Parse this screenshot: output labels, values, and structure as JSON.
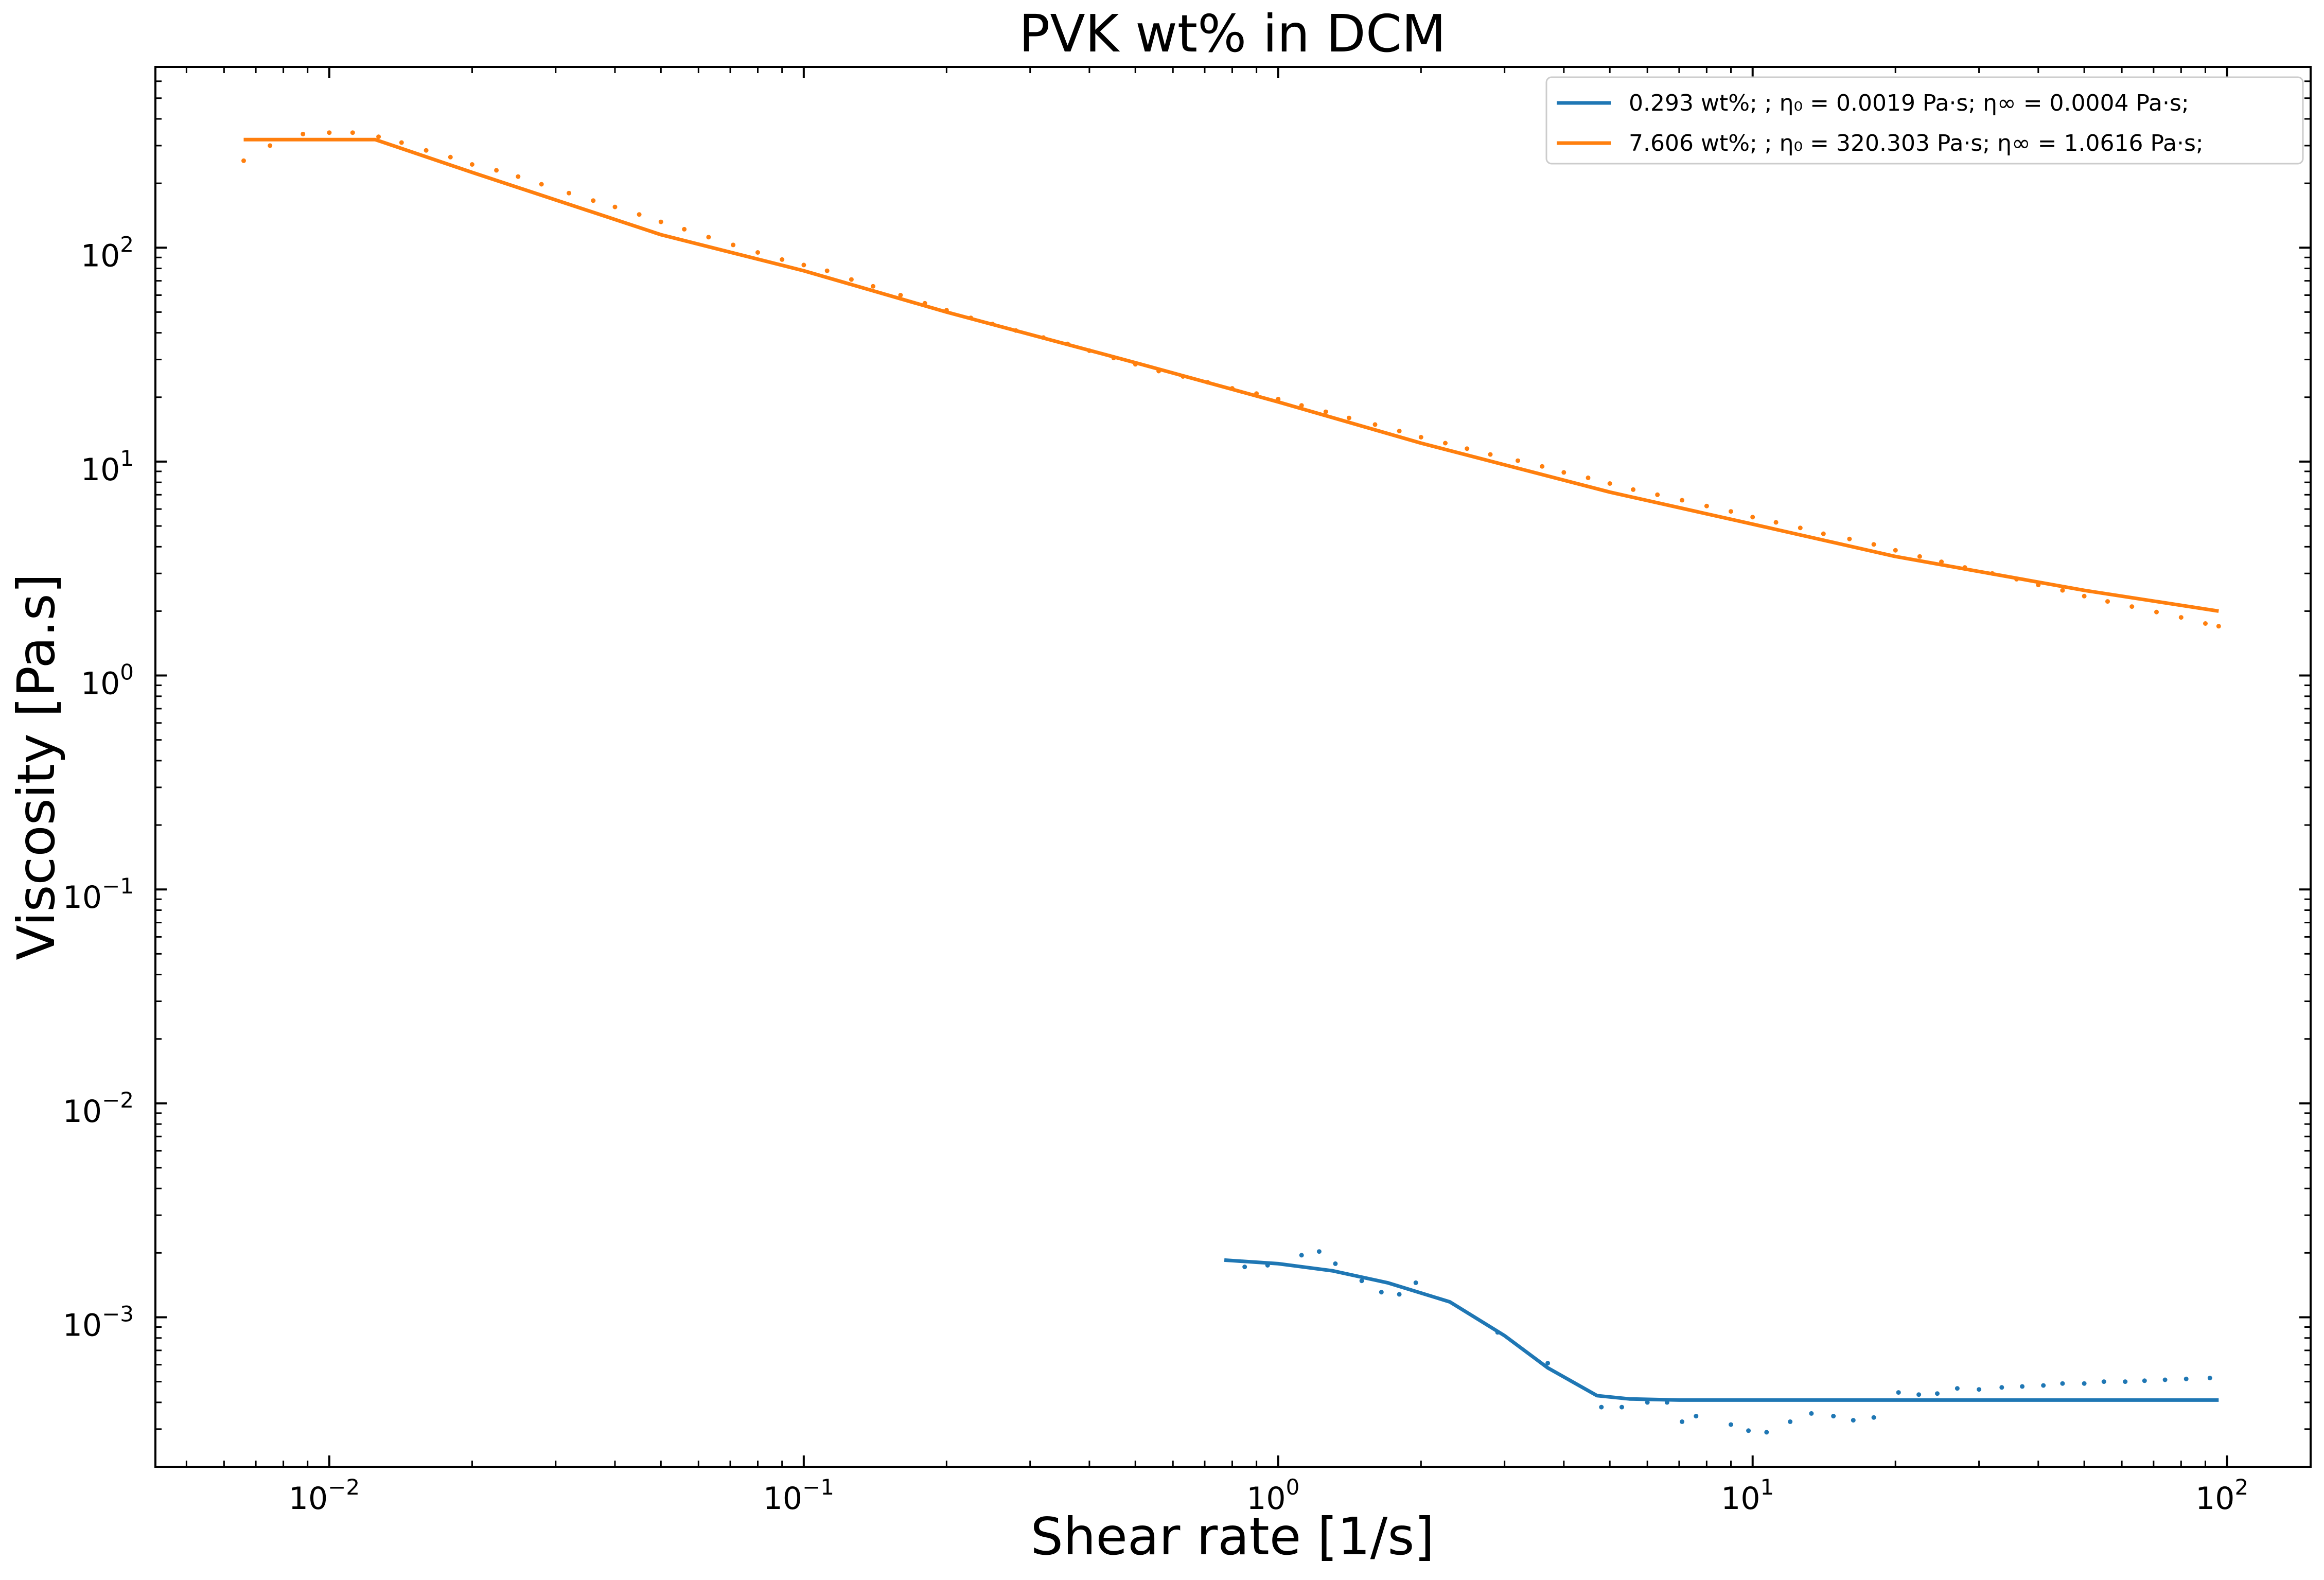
{
  "chart_data": {
    "type": "line",
    "title": "PVK wt% in DCM",
    "xlabel": "Shear rate [1/s]",
    "ylabel": "Viscosity [Pa.s]",
    "xscale": "log",
    "yscale": "log",
    "xlim": [
      0.0043,
      150
    ],
    "ylim": [
      0.0002,
      700
    ],
    "xticks": [
      {
        "value": 0.01,
        "base": "10",
        "exp": "−2"
      },
      {
        "value": 0.1,
        "base": "10",
        "exp": "−1"
      },
      {
        "value": 1,
        "base": "10",
        "exp": "0"
      },
      {
        "value": 10,
        "base": "10",
        "exp": "1"
      },
      {
        "value": 100,
        "base": "10",
        "exp": "2"
      }
    ],
    "yticks": [
      {
        "value": 0.001,
        "base": "10",
        "exp": "−3"
      },
      {
        "value": 0.01,
        "base": "10",
        "exp": "−2"
      },
      {
        "value": 0.1,
        "base": "10",
        "exp": "−1"
      },
      {
        "value": 1,
        "base": "10",
        "exp": "0"
      },
      {
        "value": 10,
        "base": "10",
        "exp": "1"
      },
      {
        "value": 100,
        "base": "10",
        "exp": "2"
      }
    ],
    "grid": false,
    "legend_position": "top-right",
    "series": [
      {
        "name": "0.293 wt%; ; η₀ = 0.0019 Pa·s; η∞ = 0.0004 Pa·s;",
        "color": "#1f77b4",
        "fit": [
          [
            0.77,
            0.00185
          ],
          [
            1.0,
            0.00178
          ],
          [
            1.3,
            0.00165
          ],
          [
            1.7,
            0.00145
          ],
          [
            2.3,
            0.00118
          ],
          [
            3.0,
            0.00082
          ],
          [
            3.7,
            0.00058
          ],
          [
            4.7,
            0.00043
          ],
          [
            5.5,
            0.000415
          ],
          [
            7,
            0.00041
          ],
          [
            10,
            0.00041
          ],
          [
            20,
            0.00041
          ],
          [
            50,
            0.00041
          ],
          [
            96,
            0.00041
          ]
        ],
        "measured": [
          [
            0.85,
            0.00172
          ],
          [
            0.95,
            0.00175
          ],
          [
            1.12,
            0.00195
          ],
          [
            1.22,
            0.00203
          ],
          [
            1.32,
            0.00178
          ],
          [
            1.5,
            0.00148
          ],
          [
            1.65,
            0.00131
          ],
          [
            1.8,
            0.00128
          ],
          [
            1.95,
            0.00145
          ],
          [
            2.9,
            0.00085
          ],
          [
            3.7,
            0.00061
          ],
          [
            4.8,
            0.00038
          ],
          [
            5.3,
            0.00038
          ],
          [
            6.0,
            0.0004
          ],
          [
            6.6,
            0.0004
          ],
          [
            7.1,
            0.000325
          ],
          [
            7.6,
            0.000345
          ],
          [
            9.0,
            0.000315
          ],
          [
            9.8,
            0.000295
          ],
          [
            10.7,
            0.00029
          ],
          [
            12.0,
            0.000325
          ],
          [
            13.3,
            0.000355
          ],
          [
            14.8,
            0.000345
          ],
          [
            16.3,
            0.00033
          ],
          [
            18.0,
            0.00034
          ],
          [
            20.3,
            0.000445
          ],
          [
            22.4,
            0.000435
          ],
          [
            24.5,
            0.00044
          ],
          [
            27.0,
            0.000465
          ],
          [
            30,
            0.00046
          ],
          [
            33.5,
            0.00047
          ],
          [
            37,
            0.000475
          ],
          [
            41,
            0.00048
          ],
          [
            45,
            0.00049
          ],
          [
            50,
            0.00049
          ],
          [
            55,
            0.0005
          ],
          [
            61,
            0.0005
          ],
          [
            67,
            0.000505
          ],
          [
            74,
            0.00051
          ],
          [
            82,
            0.000515
          ],
          [
            92,
            0.00052
          ]
        ]
      },
      {
        "name": "7.606 wt%; ; η₀ = 320.303 Pa·s; η∞ = 1.0616 Pa·s;",
        "color": "#ff7f0e",
        "fit": [
          [
            0.0066,
            320
          ],
          [
            0.0125,
            320
          ],
          [
            0.02,
            225
          ],
          [
            0.05,
            115
          ],
          [
            0.1,
            78
          ],
          [
            0.2,
            50
          ],
          [
            0.5,
            29
          ],
          [
            1,
            19
          ],
          [
            2,
            12.2
          ],
          [
            5,
            7.2
          ],
          [
            10,
            5.1
          ],
          [
            20,
            3.6
          ],
          [
            50,
            2.5
          ],
          [
            96,
            2.0
          ]
        ],
        "measured": [
          [
            0.0066,
            255
          ],
          [
            0.0075,
            300
          ],
          [
            0.0088,
            340
          ],
          [
            0.01,
            345
          ],
          [
            0.0112,
            345
          ],
          [
            0.0127,
            330
          ],
          [
            0.0142,
            310
          ],
          [
            0.016,
            285
          ],
          [
            0.018,
            265
          ],
          [
            0.02,
            245
          ],
          [
            0.0225,
            230
          ],
          [
            0.025,
            215
          ],
          [
            0.028,
            198
          ],
          [
            0.032,
            180
          ],
          [
            0.036,
            166
          ],
          [
            0.04,
            155
          ],
          [
            0.045,
            143
          ],
          [
            0.05,
            132
          ],
          [
            0.056,
            122
          ],
          [
            0.063,
            112
          ],
          [
            0.071,
            103
          ],
          [
            0.08,
            95
          ],
          [
            0.09,
            88
          ],
          [
            0.1,
            83
          ],
          [
            0.112,
            78
          ],
          [
            0.126,
            71
          ],
          [
            0.14,
            66
          ],
          [
            0.16,
            60
          ],
          [
            0.18,
            55
          ],
          [
            0.2,
            51
          ],
          [
            0.225,
            47
          ],
          [
            0.25,
            44
          ],
          [
            0.28,
            41
          ],
          [
            0.32,
            38
          ],
          [
            0.36,
            35.5
          ],
          [
            0.4,
            33
          ],
          [
            0.45,
            30.5
          ],
          [
            0.5,
            28.5
          ],
          [
            0.56,
            26.5
          ],
          [
            0.63,
            25
          ],
          [
            0.71,
            23.5
          ],
          [
            0.8,
            22
          ],
          [
            0.9,
            20.8
          ],
          [
            1.0,
            19.6
          ],
          [
            1.12,
            18.3
          ],
          [
            1.26,
            17.1
          ],
          [
            1.41,
            16
          ],
          [
            1.6,
            14.9
          ],
          [
            1.8,
            13.9
          ],
          [
            2.0,
            13
          ],
          [
            2.25,
            12.2
          ],
          [
            2.5,
            11.5
          ],
          [
            2.8,
            10.8
          ],
          [
            3.2,
            10.1
          ],
          [
            3.6,
            9.5
          ],
          [
            4.0,
            8.9
          ],
          [
            4.5,
            8.4
          ],
          [
            5.0,
            7.9
          ],
          [
            5.6,
            7.4
          ],
          [
            6.3,
            7.0
          ],
          [
            7.1,
            6.6
          ],
          [
            8.0,
            6.2
          ],
          [
            9.0,
            5.85
          ],
          [
            10,
            5.5
          ],
          [
            11.2,
            5.2
          ],
          [
            12.6,
            4.9
          ],
          [
            14.1,
            4.6
          ],
          [
            16,
            4.35
          ],
          [
            18,
            4.1
          ],
          [
            20,
            3.85
          ],
          [
            22.5,
            3.6
          ],
          [
            25,
            3.4
          ],
          [
            28,
            3.2
          ],
          [
            32,
            3.0
          ],
          [
            36,
            2.82
          ],
          [
            40,
            2.65
          ],
          [
            45,
            2.5
          ],
          [
            50,
            2.35
          ],
          [
            56,
            2.22
          ],
          [
            63,
            2.1
          ],
          [
            71,
            1.98
          ],
          [
            80,
            1.87
          ],
          [
            90,
            1.75
          ],
          [
            96,
            1.7
          ]
        ]
      }
    ]
  }
}
